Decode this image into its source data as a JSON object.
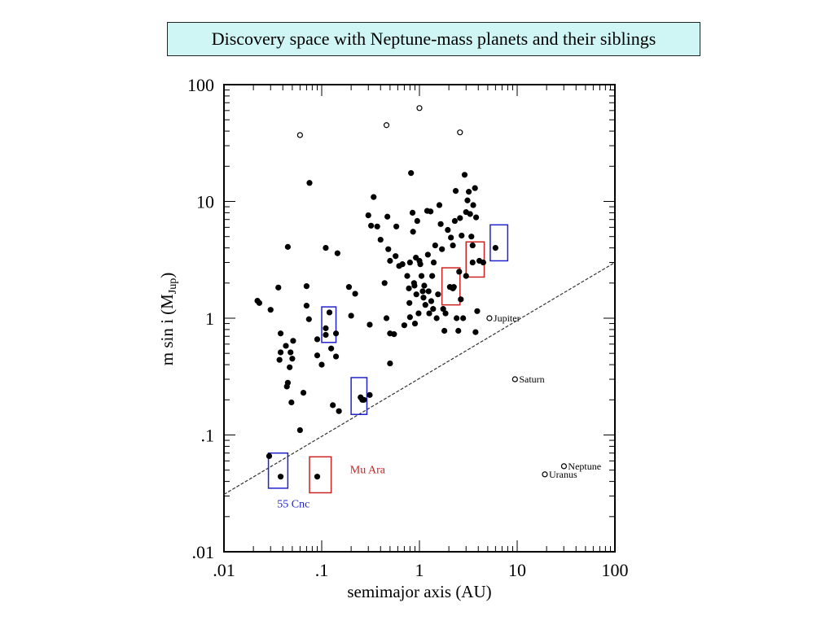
{
  "slide": {
    "title": "Discovery space with Neptune-mass planets and their siblings"
  },
  "chart_data": {
    "type": "scatter",
    "xlabel": "semimajor axis (AU)",
    "ylabel_main": "m sin i (M",
    "ylabel_sub": "Jup",
    "ylabel_close": ")",
    "x_scale": "log",
    "y_scale": "log",
    "xlim": [
      0.01,
      100
    ],
    "ylim": [
      0.01,
      100
    ],
    "x_ticks": [
      {
        "value": 0.01,
        "label": ".01"
      },
      {
        "value": 0.1,
        "label": ".1"
      },
      {
        "value": 1,
        "label": "1"
      },
      {
        "value": 10,
        "label": "10"
      },
      {
        "value": 100,
        "label": "100"
      }
    ],
    "y_ticks": [
      {
        "value": 0.01,
        "label": ".01"
      },
      {
        "value": 0.1,
        "label": ".1"
      },
      {
        "value": 1,
        "label": "1"
      },
      {
        "value": 10,
        "label": "10"
      },
      {
        "value": 100,
        "label": "100"
      }
    ],
    "detection_limit_line": [
      [
        0.01,
        0.031
      ],
      [
        100,
        3.0
      ]
    ],
    "exoplanets": [
      [
        0.022,
        1.41
      ],
      [
        0.023,
        1.35
      ],
      [
        0.03,
        1.18
      ],
      [
        0.036,
        1.83
      ],
      [
        0.038,
        0.74
      ],
      [
        0.038,
        0.51
      ],
      [
        0.037,
        0.44
      ],
      [
        0.043,
        0.58
      ],
      [
        0.045,
        0.28
      ],
      [
        0.047,
        0.38
      ],
      [
        0.045,
        4.08
      ],
      [
        0.048,
        0.51
      ],
      [
        0.05,
        0.45
      ],
      [
        0.051,
        0.64
      ],
      [
        0.049,
        0.19
      ],
      [
        0.044,
        0.26
      ],
      [
        0.06,
        0.11
      ],
      [
        0.065,
        0.23
      ],
      [
        0.07,
        1.88
      ],
      [
        0.07,
        1.28
      ],
      [
        0.074,
        0.98
      ],
      [
        0.075,
        14.4
      ],
      [
        0.09,
        0.66
      ],
      [
        0.09,
        0.48
      ],
      [
        0.1,
        0.4
      ],
      [
        0.11,
        4.0
      ],
      [
        0.11,
        0.82
      ],
      [
        0.12,
        1.12
      ],
      [
        0.125,
        0.55
      ],
      [
        0.13,
        0.18
      ],
      [
        0.14,
        0.74
      ],
      [
        0.14,
        0.47
      ],
      [
        0.145,
        3.6
      ],
      [
        0.15,
        0.16
      ],
      [
        0.19,
        1.85
      ],
      [
        0.2,
        1.05
      ],
      [
        0.22,
        1.62
      ],
      [
        0.25,
        0.21
      ],
      [
        0.27,
        0.2
      ],
      [
        0.3,
        7.6
      ],
      [
        0.31,
        0.88
      ],
      [
        0.31,
        0.22
      ],
      [
        0.32,
        6.2
      ],
      [
        0.34,
        10.9
      ],
      [
        0.37,
        6.1
      ],
      [
        0.4,
        4.7
      ],
      [
        0.44,
        2.0
      ],
      [
        0.46,
        1.0
      ],
      [
        0.47,
        7.4
      ],
      [
        0.48,
        3.9
      ],
      [
        0.5,
        3.1
      ],
      [
        0.5,
        0.74
      ],
      [
        0.5,
        0.41
      ],
      [
        0.55,
        0.73
      ],
      [
        0.57,
        3.4
      ],
      [
        0.58,
        6.1
      ],
      [
        0.62,
        2.8
      ],
      [
        0.67,
        2.9
      ],
      [
        0.7,
        0.87
      ],
      [
        0.75,
        2.3
      ],
      [
        0.78,
        1.8
      ],
      [
        0.79,
        1.35
      ],
      [
        0.8,
        3.0
      ],
      [
        0.8,
        1.02
      ],
      [
        0.82,
        17.5
      ],
      [
        0.85,
        8.0
      ],
      [
        0.86,
        5.5
      ],
      [
        0.88,
        2.0
      ],
      [
        0.89,
        1.9
      ],
      [
        0.9,
        0.9
      ],
      [
        0.92,
        3.3
      ],
      [
        0.93,
        1.6
      ],
      [
        0.95,
        6.8
      ],
      [
        0.98,
        1.1
      ],
      [
        1.0,
        3.1
      ],
      [
        1.02,
        2.9
      ],
      [
        1.05,
        2.3
      ],
      [
        1.08,
        1.7
      ],
      [
        1.1,
        1.5
      ],
      [
        1.12,
        1.9
      ],
      [
        1.15,
        1.3
      ],
      [
        1.2,
        8.3
      ],
      [
        1.22,
        3.5
      ],
      [
        1.24,
        1.7
      ],
      [
        1.26,
        1.1
      ],
      [
        1.3,
        8.2
      ],
      [
        1.32,
        1.4
      ],
      [
        1.35,
        2.3
      ],
      [
        1.38,
        1.2
      ],
      [
        1.4,
        3.0
      ],
      [
        1.45,
        4.2
      ],
      [
        1.5,
        1.0
      ],
      [
        1.55,
        1.6
      ],
      [
        1.6,
        9.3
      ],
      [
        1.65,
        6.4
      ],
      [
        1.7,
        3.9
      ],
      [
        1.75,
        1.2
      ],
      [
        1.8,
        0.78
      ],
      [
        1.85,
        1.1
      ],
      [
        1.95,
        5.7
      ],
      [
        2.05,
        1.85
      ],
      [
        2.1,
        4.9
      ],
      [
        2.2,
        4.2
      ],
      [
        2.3,
        6.8
      ],
      [
        2.35,
        12.3
      ],
      [
        2.4,
        1.0
      ],
      [
        2.5,
        0.78
      ],
      [
        2.55,
        2.5
      ],
      [
        2.6,
        7.2
      ],
      [
        2.65,
        1.45
      ],
      [
        2.7,
        5.1
      ],
      [
        2.8,
        1.0
      ],
      [
        2.9,
        16.9
      ],
      [
        3.0,
        8.1
      ],
      [
        3.1,
        10.2
      ],
      [
        3.2,
        12.1
      ],
      [
        3.3,
        7.8
      ],
      [
        3.4,
        5.0
      ],
      [
        3.5,
        4.2
      ],
      [
        3.55,
        9.3
      ],
      [
        3.7,
        13.0
      ],
      [
        3.75,
        0.76
      ],
      [
        3.8,
        7.3
      ],
      [
        3.9,
        1.15
      ],
      [
        4.1,
        3.1
      ],
      [
        4.5,
        3.0
      ],
      [
        3.0,
        2.3
      ],
      [
        2.25,
        1.85
      ],
      [
        0.11,
        0.72
      ],
      [
        0.029,
        0.066
      ],
      [
        0.038,
        0.044
      ],
      [
        0.09,
        0.044
      ],
      [
        0.26,
        0.2
      ],
      [
        6.0,
        4.0
      ],
      [
        3.5,
        3.0
      ],
      [
        2.2,
        1.8
      ]
    ],
    "hollow_points": [
      [
        0.06,
        37
      ],
      [
        0.46,
        45
      ],
      [
        1.0,
        63
      ],
      [
        2.6,
        39
      ]
    ],
    "solar_system": [
      {
        "name": "Jupiter",
        "a": 5.2,
        "m": 1.0
      },
      {
        "name": "Saturn",
        "a": 9.5,
        "m": 0.3
      },
      {
        "name": "Neptune",
        "a": 30.1,
        "m": 0.054
      },
      {
        "name": "Uranus",
        "a": 19.2,
        "m": 0.046
      }
    ],
    "highlight_boxes": [
      {
        "system": "55 Cnc",
        "color": "#2222cc",
        "x": [
          0.0285,
          0.045
        ],
        "y": [
          0.035,
          0.07
        ]
      },
      {
        "system": "55 Cnc",
        "color": "#2222cc",
        "x": [
          0.1,
          0.14
        ],
        "y": [
          0.62,
          1.25
        ]
      },
      {
        "system": "55 Cnc",
        "color": "#2222cc",
        "x": [
          0.2,
          0.29
        ],
        "y": [
          0.15,
          0.31
        ]
      },
      {
        "system": "55 Cnc",
        "color": "#2222cc",
        "x": [
          5.3,
          8.0
        ],
        "y": [
          3.1,
          6.3
        ]
      },
      {
        "system": "Mu Ara",
        "color": "#cc2222",
        "x": [
          0.075,
          0.125
        ],
        "y": [
          0.032,
          0.065
        ]
      },
      {
        "system": "Mu Ara",
        "color": "#cc2222",
        "x": [
          1.7,
          2.6
        ],
        "y": [
          1.3,
          2.7
        ]
      },
      {
        "system": "Mu Ara",
        "color": "#cc2222",
        "x": [
          3.0,
          4.6
        ],
        "y": [
          2.25,
          4.5
        ]
      }
    ],
    "annotations": [
      {
        "text": "55 Cnc",
        "color": "#2222cc",
        "x": 0.035,
        "y": 0.024
      },
      {
        "text": "Mu Ara",
        "color": "#cc2222",
        "x": 0.195,
        "y": 0.047
      }
    ],
    "grid": false
  }
}
